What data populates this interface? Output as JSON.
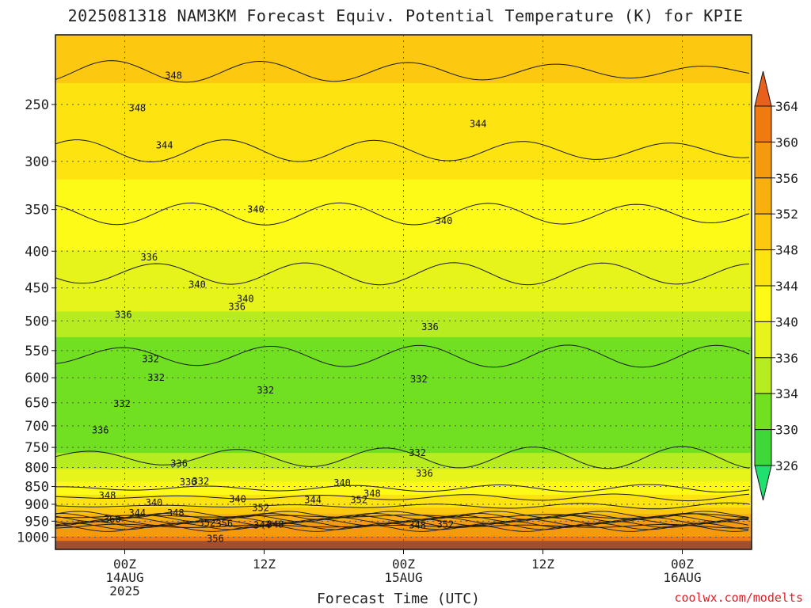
{
  "chart_data": {
    "type": "heatmap",
    "title": "2025081318 NAM3KM Forecast Equiv. Potential Temperature (K) for KPIE",
    "xlabel": "Forecast Time (UTC)",
    "ylabel": "",
    "y_log_scale": true,
    "y_reversed": true,
    "ylim": [
      1040,
      200
    ],
    "y_ticks": [
      250,
      300,
      350,
      400,
      450,
      500,
      550,
      600,
      650,
      700,
      750,
      800,
      850,
      900,
      950,
      1000
    ],
    "x_ticks": [
      {
        "line1": "00Z",
        "line2": "14AUG",
        "line3": "2025"
      },
      {
        "line1": "12Z",
        "line2": "",
        "line3": ""
      },
      {
        "line1": "00Z",
        "line2": "15AUG",
        "line3": ""
      },
      {
        "line1": "12Z",
        "line2": "",
        "line3": ""
      },
      {
        "line1": "00Z",
        "line2": "16AUG",
        "line3": ""
      }
    ],
    "grid": true,
    "colorbar": {
      "labels": [
        364,
        360,
        356,
        352,
        348,
        344,
        340,
        336,
        334,
        330,
        326
      ],
      "colors": [
        "#e8601c",
        "#f07a10",
        "#f49a0e",
        "#f8b010",
        "#fcc810",
        "#fde410",
        "#fefa18",
        "#e6f41c",
        "#b6ec20",
        "#70e020",
        "#40d838",
        "#20e070"
      ]
    },
    "profile": [
      {
        "p": 200,
        "theta": 350
      },
      {
        "p": 250,
        "theta": 347
      },
      {
        "p": 300,
        "theta": 345
      },
      {
        "p": 350,
        "theta": 342
      },
      {
        "p": 400,
        "theta": 340
      },
      {
        "p": 450,
        "theta": 338
      },
      {
        "p": 500,
        "theta": 335
      },
      {
        "p": 550,
        "theta": 333
      },
      {
        "p": 600,
        "theta": 332
      },
      {
        "p": 650,
        "theta": 331
      },
      {
        "p": 700,
        "theta": 332
      },
      {
        "p": 750,
        "theta": 333
      },
      {
        "p": 800,
        "theta": 336
      },
      {
        "p": 850,
        "theta": 341
      },
      {
        "p": 900,
        "theta": 347
      },
      {
        "p": 950,
        "theta": 356
      },
      {
        "p": 1000,
        "theta": 360
      }
    ],
    "contour_labels": [
      {
        "text": "348",
        "x": 0.7,
        "p": 228
      },
      {
        "text": "348",
        "x": 0.18,
        "p": 253
      },
      {
        "text": "344",
        "x": 0.57,
        "p": 285
      },
      {
        "text": "344",
        "x": 5.07,
        "p": 266
      },
      {
        "text": "340",
        "x": 1.88,
        "p": 350
      },
      {
        "text": "340",
        "x": 4.58,
        "p": 363
      },
      {
        "text": "336",
        "x": 0.35,
        "p": 408
      },
      {
        "text": "340",
        "x": 1.04,
        "p": 445
      },
      {
        "text": "340",
        "x": 1.73,
        "p": 466
      },
      {
        "text": "336",
        "x": 1.61,
        "p": 478
      },
      {
        "text": "336",
        "x": -0.02,
        "p": 490
      },
      {
        "text": "336",
        "x": 4.38,
        "p": 510
      },
      {
        "text": "332",
        "x": 0.37,
        "p": 565
      },
      {
        "text": "332",
        "x": 0.45,
        "p": 600
      },
      {
        "text": "332",
        "x": 4.22,
        "p": 603
      },
      {
        "text": "332",
        "x": 2.02,
        "p": 625
      },
      {
        "text": "332",
        "x": -0.04,
        "p": 652
      },
      {
        "text": "336",
        "x": -0.35,
        "p": 710
      },
      {
        "text": "332",
        "x": 4.2,
        "p": 763
      },
      {
        "text": "336",
        "x": 0.78,
        "p": 790
      },
      {
        "text": "336",
        "x": 4.3,
        "p": 815
      },
      {
        "text": "336",
        "x": 0.91,
        "p": 838
      },
      {
        "text": "332",
        "x": 1.09,
        "p": 836
      },
      {
        "text": "340",
        "x": 3.12,
        "p": 840
      },
      {
        "text": "348",
        "x": -0.25,
        "p": 875
      },
      {
        "text": "340",
        "x": 0.42,
        "p": 895
      },
      {
        "text": "340",
        "x": 1.62,
        "p": 885
      },
      {
        "text": "352",
        "x": 1.95,
        "p": 910
      },
      {
        "text": "344",
        "x": 0.18,
        "p": 925
      },
      {
        "text": "348",
        "x": 0.73,
        "p": 925
      },
      {
        "text": "344",
        "x": 2.7,
        "p": 888
      },
      {
        "text": "352",
        "x": 3.36,
        "p": 888
      },
      {
        "text": "348",
        "x": 3.55,
        "p": 870
      },
      {
        "text": "360",
        "x": -0.18,
        "p": 945
      },
      {
        "text": "352",
        "x": 1.18,
        "p": 955
      },
      {
        "text": "356",
        "x": 1.43,
        "p": 958
      },
      {
        "text": "348",
        "x": 2.16,
        "p": 960
      },
      {
        "text": "344",
        "x": 1.97,
        "p": 962
      },
      {
        "text": "348",
        "x": 4.2,
        "p": 963
      },
      {
        "text": "352",
        "x": 4.6,
        "p": 960
      },
      {
        "text": "356",
        "x": 1.3,
        "p": 1005
      }
    ]
  },
  "credit": "coolwx.com/modelts"
}
